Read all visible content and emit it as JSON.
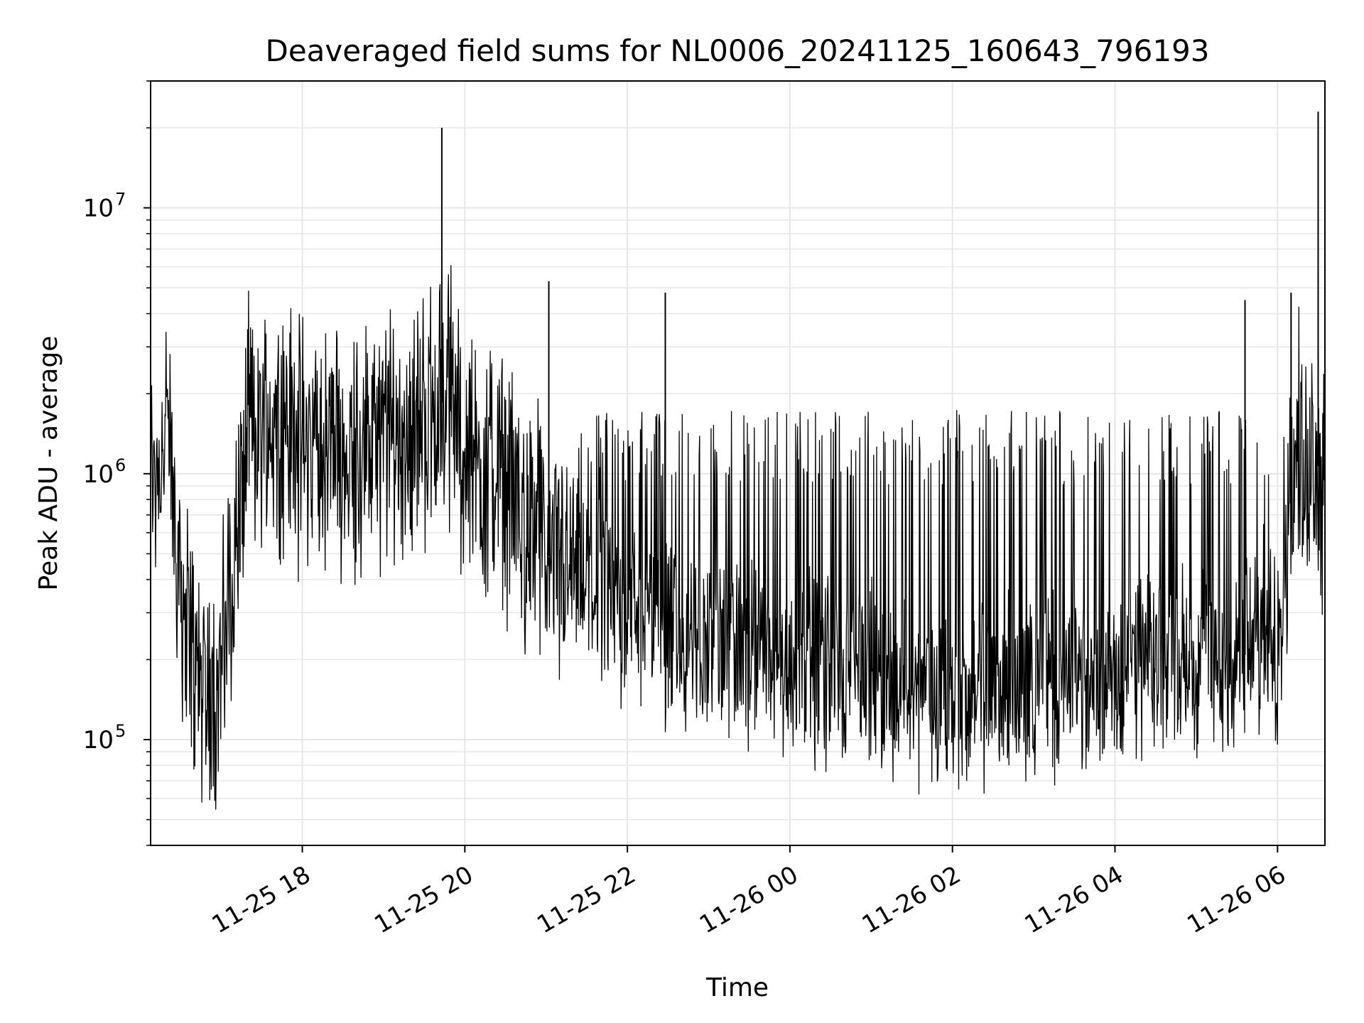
{
  "chart_data": {
    "type": "line",
    "title": "Deaveraged field sums for NL0006_20241125_160643_796193",
    "xlabel": "Time",
    "ylabel": "Peak ADU - average",
    "yscale": "log",
    "ylim": [
      40000,
      30000000
    ],
    "xlim": [
      "2024-11-25 16:08",
      "2024-11-26 06:35"
    ],
    "grid": true,
    "line_color": "#000000",
    "grid_color": "#e6e6e6",
    "x_ticks": [
      {
        "value": "2024-11-25 18:00",
        "label": "11-25 18"
      },
      {
        "value": "2024-11-25 20:00",
        "label": "11-25 20"
      },
      {
        "value": "2024-11-25 22:00",
        "label": "11-25 22"
      },
      {
        "value": "2024-11-26 00:00",
        "label": "11-26 00"
      },
      {
        "value": "2024-11-26 02:00",
        "label": "11-26 02"
      },
      {
        "value": "2024-11-26 04:00",
        "label": "11-26 04"
      },
      {
        "value": "2024-11-26 06:00",
        "label": "11-26 06"
      }
    ],
    "y_ticks": [
      {
        "value": 100000,
        "base": "10",
        "exp": "5"
      },
      {
        "value": 1000000,
        "base": "10",
        "exp": "6"
      },
      {
        "value": 10000000,
        "base": "10",
        "exp": "7"
      }
    ],
    "series": [
      {
        "points": [
          [
            "2024-11-25 16:08",
            900000
          ],
          [
            "2024-11-25 16:20",
            1500000
          ],
          [
            "2024-11-25 16:30",
            400000
          ],
          [
            "2024-11-25 16:40",
            200000
          ],
          [
            "2024-11-25 16:50",
            150000
          ],
          [
            "2024-11-25 17:00",
            180000
          ],
          [
            "2024-11-25 17:10",
            500000
          ],
          [
            "2024-11-25 17:20",
            1400000
          ],
          [
            "2024-11-25 17:40",
            1600000
          ],
          [
            "2024-11-25 18:00",
            1300000
          ],
          [
            "2024-11-25 18:30",
            1200000
          ],
          [
            "2024-11-25 19:00",
            1300000
          ],
          [
            "2024-11-25 19:30",
            1600000
          ],
          [
            "2024-11-25 19:50",
            2000000
          ],
          [
            "2024-11-25 20:00",
            1200000
          ],
          [
            "2024-11-25 20:30",
            900000
          ],
          [
            "2024-11-25 21:00",
            500000
          ],
          [
            "2024-11-25 21:30",
            380000
          ],
          [
            "2024-11-25 22:00",
            300000
          ],
          [
            "2024-11-25 22:30",
            250000
          ],
          [
            "2024-11-25 23:00",
            230000
          ],
          [
            "2024-11-25 23:30",
            210000
          ],
          [
            "2024-11-26 00:00",
            190000
          ],
          [
            "2024-11-26 00:30",
            180000
          ],
          [
            "2024-11-26 01:00",
            170000
          ],
          [
            "2024-11-26 01:30",
            150000
          ],
          [
            "2024-11-26 02:00",
            140000
          ],
          [
            "2024-11-26 02:30",
            150000
          ],
          [
            "2024-11-26 03:00",
            160000
          ],
          [
            "2024-11-26 03:30",
            170000
          ],
          [
            "2024-11-26 04:00",
            180000
          ],
          [
            "2024-11-26 04:30",
            190000
          ],
          [
            "2024-11-26 05:00",
            200000
          ],
          [
            "2024-11-26 05:30",
            190000
          ],
          [
            "2024-11-26 06:00",
            300000
          ],
          [
            "2024-11-26 06:15",
            1300000
          ],
          [
            "2024-11-26 06:35",
            1000000
          ]
        ],
        "spikes": [
          [
            "2024-11-25 19:43",
            20000000
          ],
          [
            "2024-11-26 06:30",
            23000000
          ],
          [
            "2024-11-25 21:02",
            5300000
          ],
          [
            "2024-11-25 22:28",
            4800000
          ],
          [
            "2024-11-26 05:36",
            4500000
          ],
          [
            "2024-11-26 06:10",
            4800000
          ]
        ]
      }
    ]
  }
}
